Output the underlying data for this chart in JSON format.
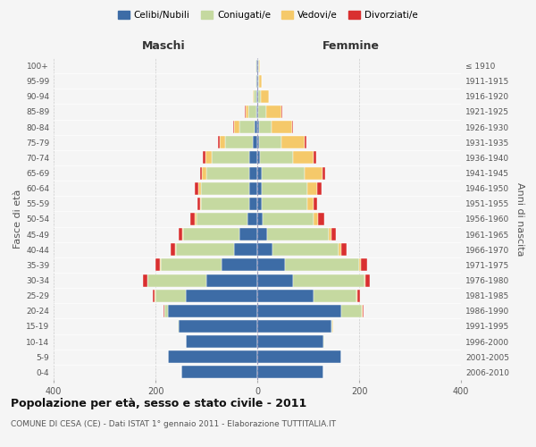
{
  "age_groups": [
    "0-4",
    "5-9",
    "10-14",
    "15-19",
    "20-24",
    "25-29",
    "30-34",
    "35-39",
    "40-44",
    "45-49",
    "50-54",
    "55-59",
    "60-64",
    "65-69",
    "70-74",
    "75-79",
    "80-84",
    "85-89",
    "90-94",
    "95-99",
    "100+"
  ],
  "birth_years": [
    "2006-2010",
    "2001-2005",
    "1996-2000",
    "1991-1995",
    "1986-1990",
    "1981-1985",
    "1976-1980",
    "1971-1975",
    "1966-1970",
    "1961-1965",
    "1956-1960",
    "1951-1955",
    "1946-1950",
    "1941-1945",
    "1936-1940",
    "1931-1935",
    "1926-1930",
    "1921-1925",
    "1916-1920",
    "1911-1915",
    "≤ 1910"
  ],
  "maschi": {
    "celibi": [
      150,
      175,
      140,
      155,
      175,
      140,
      100,
      70,
      45,
      35,
      20,
      15,
      15,
      15,
      15,
      8,
      5,
      2,
      2,
      1,
      1
    ],
    "coniugati": [
      0,
      0,
      1,
      2,
      8,
      60,
      115,
      120,
      115,
      110,
      100,
      95,
      95,
      85,
      75,
      55,
      30,
      15,
      5,
      3,
      2
    ],
    "vedovi": [
      0,
      0,
      0,
      0,
      0,
      1,
      1,
      2,
      2,
      2,
      3,
      3,
      5,
      8,
      12,
      10,
      10,
      5,
      2,
      0,
      0
    ],
    "divorziati": [
      0,
      0,
      0,
      0,
      2,
      5,
      8,
      8,
      8,
      8,
      8,
      5,
      8,
      5,
      5,
      4,
      3,
      2,
      0,
      0,
      0
    ]
  },
  "femmine": {
    "nubili": [
      130,
      165,
      130,
      145,
      165,
      110,
      70,
      55,
      30,
      20,
      10,
      8,
      8,
      8,
      5,
      3,
      3,
      2,
      2,
      1,
      1
    ],
    "coniugate": [
      0,
      0,
      1,
      3,
      40,
      85,
      140,
      145,
      130,
      120,
      100,
      90,
      90,
      85,
      65,
      45,
      25,
      15,
      5,
      3,
      2
    ],
    "vedove": [
      0,
      0,
      0,
      1,
      2,
      2,
      3,
      4,
      5,
      5,
      10,
      12,
      20,
      35,
      40,
      45,
      40,
      30,
      15,
      5,
      2
    ],
    "divorziate": [
      0,
      0,
      0,
      0,
      2,
      5,
      8,
      12,
      10,
      10,
      12,
      8,
      8,
      5,
      5,
      4,
      3,
      2,
      0,
      0,
      0
    ]
  },
  "colors": {
    "celibi": "#3d6ca6",
    "coniugati": "#c5d9a0",
    "vedovi": "#f5c96a",
    "divorziati": "#d93030"
  },
  "xlim": 400,
  "title": "Popolazione per età, sesso e stato civile - 2011",
  "subtitle": "COMUNE DI CESA (CE) - Dati ISTAT 1° gennaio 2011 - Elaborazione TUTTITALIA.IT",
  "ylabel_left": "Fasce di età",
  "ylabel_right": "Anni di nascita",
  "xlabel_left": "Maschi",
  "xlabel_right": "Femmine",
  "legend_labels": [
    "Celibi/Nubili",
    "Coniugati/e",
    "Vedovi/e",
    "Divorziati/e"
  ],
  "bg_color": "#f5f5f5",
  "plot_bg": "#f5f5f5",
  "grid_color": "#cccccc"
}
